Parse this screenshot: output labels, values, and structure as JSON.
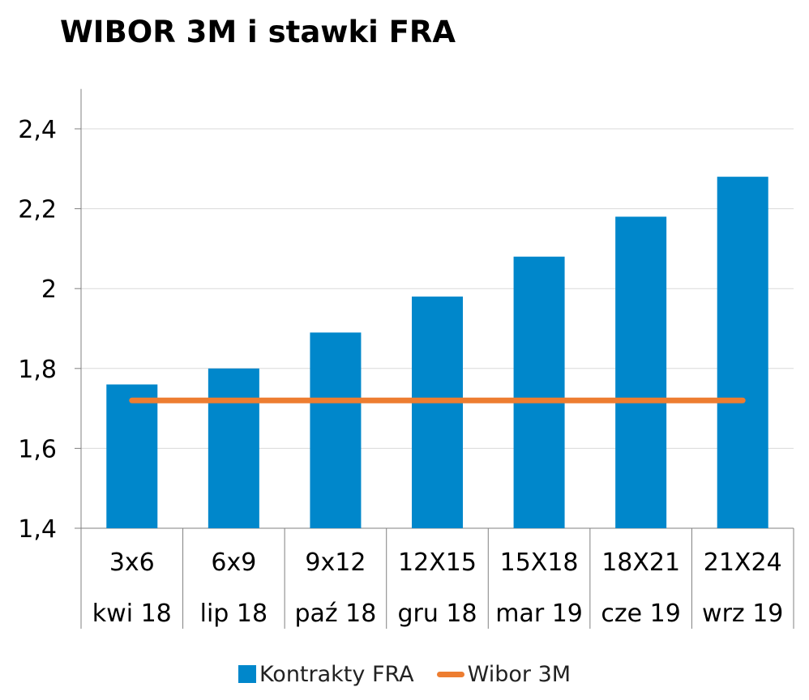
{
  "chart_data": {
    "type": "bar",
    "title": "WIBOR 3M i stawki FRA",
    "categories": [
      "3x6",
      "6x9",
      "9x12",
      "12X15",
      "15X18",
      "18X21",
      "21X24"
    ],
    "sub_categories": [
      "kwi 18",
      "lip 18",
      "paź 18",
      "gru 18",
      "mar 19",
      "cze 19",
      "wrz 19"
    ],
    "series": [
      {
        "name": "Kontrakty FRA",
        "type": "bar",
        "color": "#0087CB",
        "values": [
          1.76,
          1.8,
          1.89,
          1.98,
          2.08,
          2.18,
          2.28
        ]
      },
      {
        "name": "Wibor 3M",
        "type": "line",
        "color": "#ED7D31",
        "values": [
          1.72,
          1.72,
          1.72,
          1.72,
          1.72,
          1.72,
          1.72
        ]
      }
    ],
    "y_ticks": [
      "1,4",
      "1,6",
      "1,8",
      "2",
      "2,2",
      "2,4"
    ],
    "ylim": [
      1.4,
      2.5
    ],
    "grid": true,
    "legend_position": "bottom"
  }
}
